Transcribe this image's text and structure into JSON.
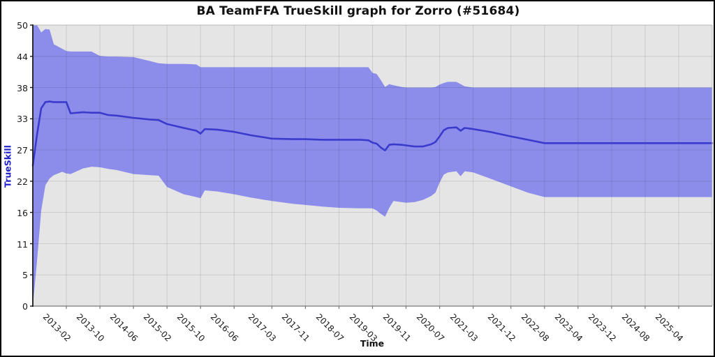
{
  "page": {
    "background": "#ffffff",
    "frame_border_color": "#000000"
  },
  "colors": {
    "plot_background": "#e5e5e5",
    "grid_overlay": "rgba(0,0,0,0.11)",
    "band_fill": "#8c8dea",
    "line_stroke": "#3a3acc",
    "axis_left": "#1a1a1a",
    "axis_bottom": "#777777",
    "border_light": "#b6b6b6",
    "ylabel_color": "#2222cc",
    "title_color": "#111111",
    "tick_label_color": "#1a1a1a"
  },
  "chart_data": {
    "type": "area",
    "title": "BA TeamFFA TrueSkill graph for Zorro (#51684)",
    "xlabel": "Time",
    "ylabel": "TrueSkill",
    "ylim": [
      0,
      50
    ],
    "grid": true,
    "legend": "none",
    "x_range": {
      "start": "2012-06",
      "end": "2025-12"
    },
    "y_ticks": [
      {
        "label": "0",
        "value": 0
      },
      {
        "label": "5",
        "value": 5.56
      },
      {
        "label": "11",
        "value": 11.11
      },
      {
        "label": "16",
        "value": 16.67
      },
      {
        "label": "22",
        "value": 22.22
      },
      {
        "label": "27",
        "value": 27.78
      },
      {
        "label": "33",
        "value": 33.33
      },
      {
        "label": "38",
        "value": 38.89
      },
      {
        "label": "44",
        "value": 44.44
      },
      {
        "label": "50",
        "value": 50
      }
    ],
    "x_ticks": [
      "2013-02",
      "2013-10",
      "2014-06",
      "2015-02",
      "2015-10",
      "2016-06",
      "2017-03",
      "2017-11",
      "2018-07",
      "2019-03",
      "2019-11",
      "2020-07",
      "2021-03",
      "2021-12",
      "2022-08",
      "2023-04",
      "2023-12",
      "2024-08",
      "2025-04"
    ],
    "series": [
      {
        "name": "trueskill-estimate",
        "type": "line",
        "color": "#3a3acc"
      },
      {
        "name": "confidence-band",
        "type": "band",
        "color": "#8c8dea"
      }
    ],
    "columns": [
      "date",
      "band_lower",
      "skill",
      "band_upper"
    ],
    "data_points": [
      [
        "2012-06",
        0.0,
        25.0,
        50.0
      ],
      [
        "2012-07",
        8.0,
        30.5,
        50.0
      ],
      [
        "2012-08",
        17.0,
        35.2,
        48.7
      ],
      [
        "2012-09",
        21.5,
        36.3,
        49.3
      ],
      [
        "2012-10",
        22.7,
        36.4,
        49.2
      ],
      [
        "2012-11",
        23.3,
        36.3,
        46.6
      ],
      [
        "2013-01",
        23.9,
        36.3,
        45.8
      ],
      [
        "2013-02",
        23.6,
        36.3,
        45.4
      ],
      [
        "2013-03",
        23.5,
        34.3,
        45.3
      ],
      [
        "2013-06",
        24.5,
        34.5,
        45.3
      ],
      [
        "2013-08",
        24.8,
        34.4,
        45.3
      ],
      [
        "2013-10",
        24.7,
        34.4,
        44.5
      ],
      [
        "2013-12",
        24.4,
        34.0,
        44.4
      ],
      [
        "2014-02",
        24.2,
        33.9,
        44.4
      ],
      [
        "2014-06",
        23.5,
        33.5,
        44.3
      ],
      [
        "2014-10",
        23.3,
        33.2,
        43.6
      ],
      [
        "2014-12",
        23.2,
        33.1,
        43.2
      ],
      [
        "2015-02",
        21.2,
        32.4,
        43.1
      ],
      [
        "2015-06",
        19.9,
        31.7,
        43.1
      ],
      [
        "2015-09",
        19.4,
        31.2,
        43.0
      ],
      [
        "2015-10",
        19.2,
        30.7,
        42.5
      ],
      [
        "2015-11",
        20.6,
        31.5,
        42.5
      ],
      [
        "2016-02",
        20.4,
        31.4,
        42.5
      ],
      [
        "2016-06",
        19.9,
        31.0,
        42.5
      ],
      [
        "2016-10",
        19.3,
        30.4,
        42.5
      ],
      [
        "2017-03",
        18.7,
        29.8,
        42.5
      ],
      [
        "2017-08",
        18.2,
        29.7,
        42.5
      ],
      [
        "2017-11",
        18.0,
        29.7,
        42.5
      ],
      [
        "2018-03",
        17.7,
        29.6,
        42.5
      ],
      [
        "2018-07",
        17.5,
        29.6,
        42.5
      ],
      [
        "2018-12",
        17.4,
        29.6,
        42.5
      ],
      [
        "2019-02",
        17.4,
        29.5,
        42.5
      ],
      [
        "2019-03",
        17.4,
        29.1,
        41.5
      ],
      [
        "2019-04",
        17.0,
        28.9,
        41.3
      ],
      [
        "2019-05",
        16.4,
        28.2,
        40.2
      ],
      [
        "2019-06",
        15.9,
        27.7,
        39.0
      ],
      [
        "2019-07",
        17.5,
        28.7,
        39.5
      ],
      [
        "2019-08",
        18.7,
        28.8,
        39.3
      ],
      [
        "2019-10",
        18.5,
        28.7,
        39.0
      ],
      [
        "2019-11",
        18.4,
        28.6,
        38.9
      ],
      [
        "2020-01",
        18.5,
        28.4,
        38.9
      ],
      [
        "2020-03",
        18.9,
        28.4,
        38.9
      ],
      [
        "2020-05",
        19.6,
        28.8,
        38.9
      ],
      [
        "2020-06",
        20.2,
        29.2,
        39.0
      ],
      [
        "2020-07",
        22.0,
        30.2,
        39.4
      ],
      [
        "2020-08",
        23.4,
        31.3,
        39.7
      ],
      [
        "2020-09",
        23.8,
        31.7,
        39.9
      ],
      [
        "2020-11",
        24.0,
        31.8,
        39.9
      ],
      [
        "2020-12",
        23.1,
        31.2,
        39.5
      ],
      [
        "2021-01",
        24.0,
        31.7,
        39.1
      ],
      [
        "2021-03",
        23.8,
        31.5,
        38.9
      ],
      [
        "2021-07",
        22.7,
        31.0,
        38.9
      ],
      [
        "2021-12",
        21.3,
        30.2,
        38.9
      ],
      [
        "2022-04",
        20.2,
        29.6,
        38.9
      ],
      [
        "2022-08",
        19.4,
        29.0,
        38.9
      ],
      [
        "2023-06",
        19.4,
        29.0,
        38.9
      ],
      [
        "2024-06",
        19.4,
        29.0,
        38.9
      ],
      [
        "2025-12",
        19.4,
        29.0,
        38.9
      ]
    ]
  }
}
